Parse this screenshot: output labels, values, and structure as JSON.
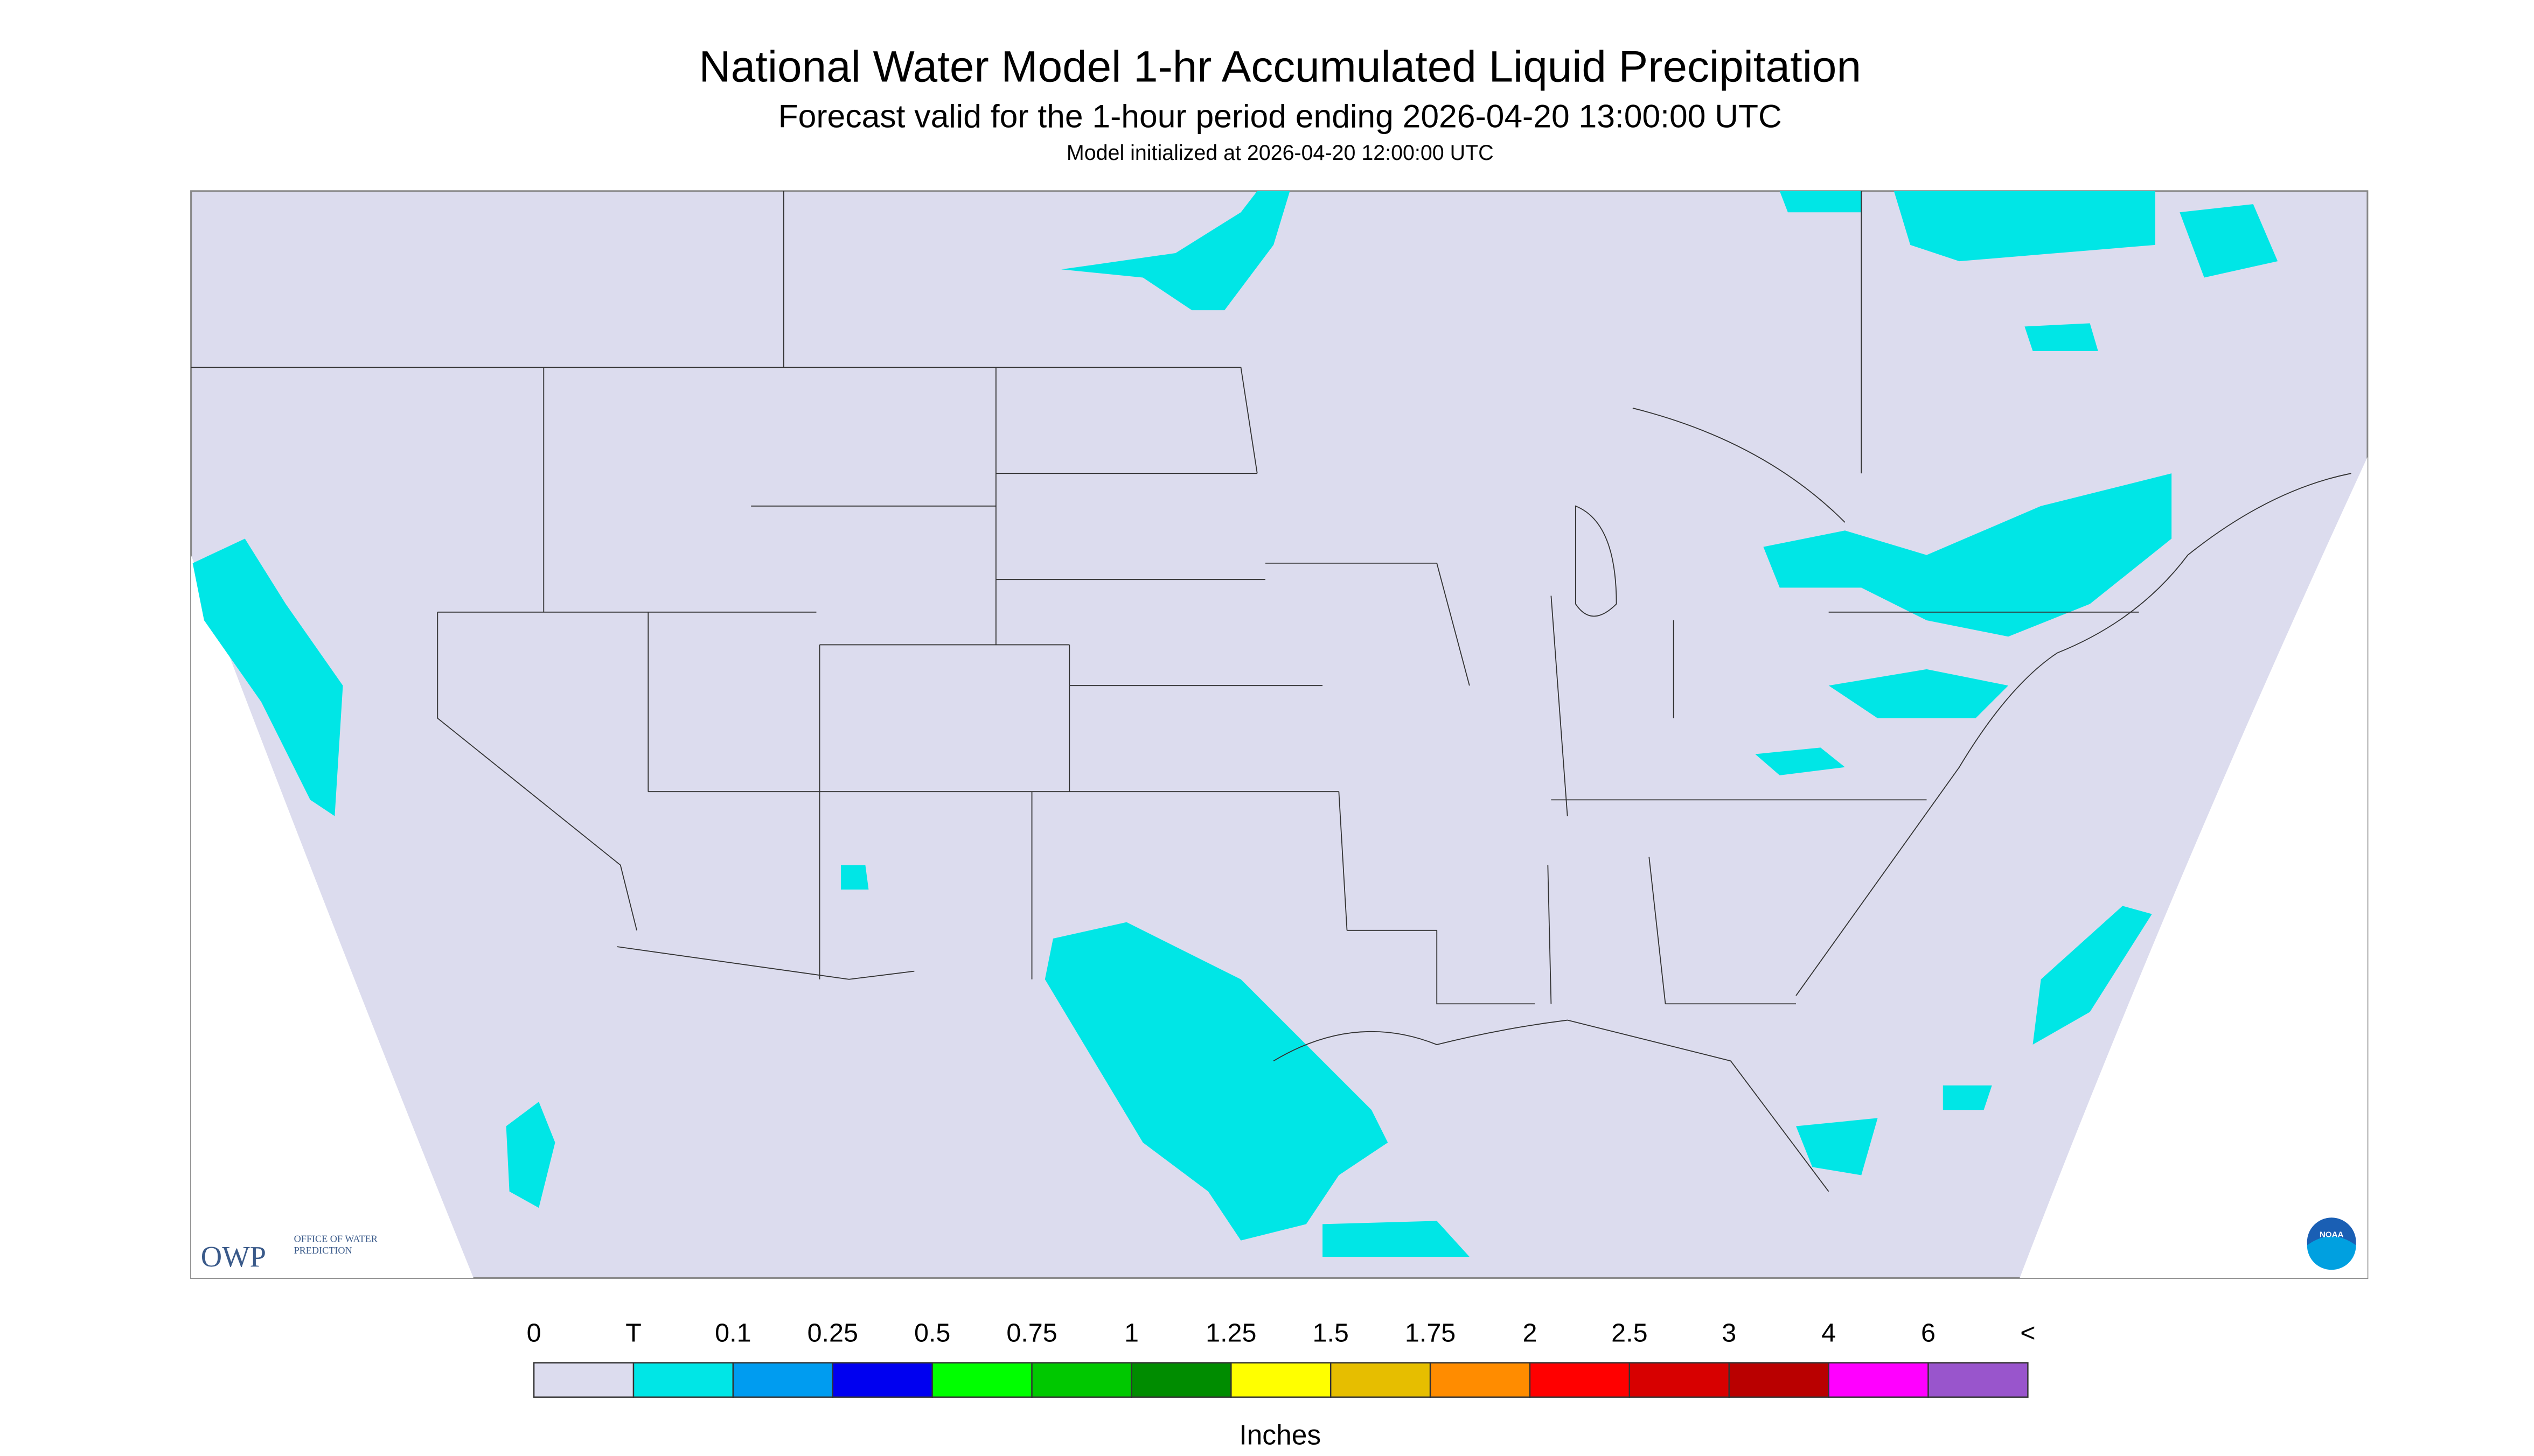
{
  "header": {
    "title": "National Water Model 1-hr Accumulated Liquid Precipitation",
    "subtitle": "Forecast valid for the 1-hour period ending 2026-04-20 13:00:00 UTC",
    "note": "Model initialized at 2026-04-20 12:00:00 UTC"
  },
  "legend": {
    "labels": [
      "0",
      "T",
      "0.1",
      "0.25",
      "0.5",
      "0.75",
      "1",
      "1.25",
      "1.5",
      "1.75",
      "2",
      "2.5",
      "3",
      "4",
      "6",
      "<"
    ],
    "colors": [
      "#dcdcee",
      "#00e6e6",
      "#009cf0",
      "#0000f0",
      "#00ff00",
      "#00c800",
      "#008c00",
      "#ffff00",
      "#e6be00",
      "#ff8c00",
      "#ff0000",
      "#d70000",
      "#b90000",
      "#ff00ff",
      "#9955cc"
    ],
    "unit": "Inches"
  },
  "logos": {
    "owp": "OWP",
    "owp_text": "OFFICE OF WATER PREDICTION",
    "noaa": "NOAA"
  }
}
